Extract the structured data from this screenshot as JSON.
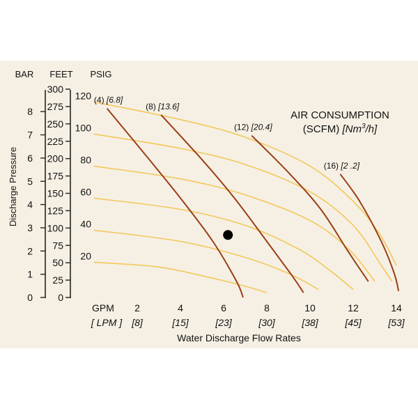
{
  "chart_data": {
    "type": "line",
    "axes": {
      "bar_header": "BAR",
      "feet_header": "FEET",
      "psig_header": "PSIG",
      "ylabel": "Discharge Pressure",
      "xlabel": "Water Discharge Flow Rates",
      "gpm_header": "GPM",
      "lpm_header": "[ LPM ]",
      "bar_ticks": [
        "0",
        "1",
        "2",
        "3",
        "4",
        "5",
        "6",
        "7",
        "8"
      ],
      "feet_ticks": [
        "0",
        "25",
        "50",
        "75",
        "100",
        "125",
        "150",
        "175",
        "200",
        "225",
        "250",
        "275",
        "300"
      ],
      "gpm_ticks": [
        "2",
        "4",
        "6",
        "8",
        "10",
        "12",
        "14"
      ],
      "lpm_ticks": [
        "[8]",
        "[15]",
        "[23]",
        "[30]",
        "[38]",
        "[45]",
        "[53]"
      ],
      "xlim": [
        0,
        14
      ],
      "ylim_psig": [
        0,
        130
      ]
    },
    "air_title": {
      "line1": "AIR CONSUMPTION",
      "line2_prefix": "(SCFM)",
      "line2_unit": "[Nm",
      "line2_sup": "3",
      "line2_suffix": "/h]"
    },
    "psig_curves": [
      {
        "label": "120",
        "points": [
          [
            0,
            122
          ],
          [
            4,
            111
          ],
          [
            7,
            100
          ],
          [
            10,
            82
          ],
          [
            12,
            60
          ],
          [
            13.2,
            40
          ],
          [
            14,
            20
          ]
        ]
      },
      {
        "label": "100",
        "points": [
          [
            0,
            102
          ],
          [
            4,
            93
          ],
          [
            7,
            83
          ],
          [
            10,
            66
          ],
          [
            12,
            45
          ],
          [
            13.3,
            20
          ],
          [
            13.8,
            10
          ]
        ]
      },
      {
        "label": "80",
        "points": [
          [
            0,
            82
          ],
          [
            4,
            74
          ],
          [
            7,
            64
          ],
          [
            10,
            48
          ],
          [
            11.8,
            30
          ],
          [
            13,
            10
          ]
        ]
      },
      {
        "label": "60",
        "points": [
          [
            0,
            62
          ],
          [
            4,
            55
          ],
          [
            7,
            45
          ],
          [
            9.5,
            30
          ],
          [
            11,
            16
          ],
          [
            12,
            5
          ]
        ]
      },
      {
        "label": "40",
        "points": [
          [
            0,
            42
          ],
          [
            4,
            35
          ],
          [
            7,
            25
          ],
          [
            9,
            15
          ],
          [
            10.4,
            5
          ]
        ]
      },
      {
        "label": "20",
        "points": [
          [
            0,
            22
          ],
          [
            3,
            19
          ],
          [
            5.5,
            12
          ],
          [
            7,
            7
          ],
          [
            8,
            3
          ]
        ]
      }
    ],
    "air_curves": [
      {
        "label": "(4)",
        "label_bracket": "[6.8]",
        "points": [
          [
            0.6,
            118
          ],
          [
            2.5,
            87
          ],
          [
            4,
            62
          ],
          [
            5.5,
            35
          ],
          [
            6.6,
            10
          ],
          [
            6.9,
            0
          ]
        ]
      },
      {
        "label": "(8)",
        "label_bracket": "[13.6]",
        "points": [
          [
            3.1,
            114
          ],
          [
            5,
            86
          ],
          [
            6.5,
            62
          ],
          [
            8,
            35
          ],
          [
            9.2,
            13
          ],
          [
            9.7,
            3
          ]
        ]
      },
      {
        "label": "(12)",
        "label_bracket": "[20.4]",
        "points": [
          [
            7.3,
            101
          ],
          [
            9,
            78
          ],
          [
            10.5,
            55
          ],
          [
            11.8,
            28
          ],
          [
            12.7,
            10
          ]
        ]
      },
      {
        "label": "(16)",
        "label_bracket": "[2 .2]",
        "points": [
          [
            11.4,
            77
          ],
          [
            12.3,
            60
          ],
          [
            13.3,
            35
          ],
          [
            13.9,
            15
          ],
          [
            14.1,
            4
          ]
        ]
      }
    ],
    "operating_point": {
      "gpm": 6.2,
      "psig": 39
    }
  }
}
